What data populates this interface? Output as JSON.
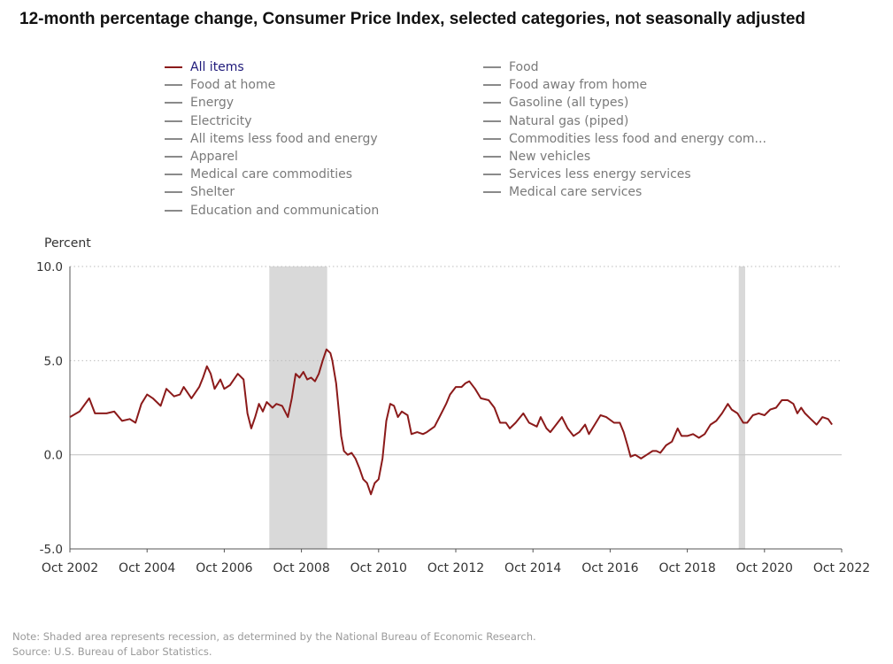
{
  "title": "12-month percentage change, Consumer Price Index, selected categories, not seasonally adjusted",
  "legend": [
    {
      "label": "All items",
      "active": true
    },
    {
      "label": "Food at home",
      "active": false
    },
    {
      "label": "Energy",
      "active": false
    },
    {
      "label": "Electricity",
      "active": false
    },
    {
      "label": "All items less food and energy",
      "active": false
    },
    {
      "label": "Apparel",
      "active": false
    },
    {
      "label": "Medical care commodities",
      "active": false
    },
    {
      "label": "Shelter",
      "active": false
    },
    {
      "label": "Education and communication",
      "active": false
    },
    {
      "label": "Food",
      "active": false
    },
    {
      "label": "Food away from home",
      "active": false
    },
    {
      "label": "Gasoline (all types)",
      "active": false
    },
    {
      "label": "Natural gas (piped)",
      "active": false
    },
    {
      "label": "Commodities less food and energy com...",
      "active": false
    },
    {
      "label": "New vehicles",
      "active": false
    },
    {
      "label": "Services less energy services",
      "active": false
    },
    {
      "label": "Medical care services",
      "active": false
    }
  ],
  "colors": {
    "series": "#8b1a1a",
    "recession": "#d9d9d9",
    "grid": "#bdbdbd",
    "zero_line": "#c8c8c8",
    "axis": "#555555"
  },
  "chart_data": {
    "type": "line",
    "ylabel": "Percent",
    "ylim": [
      -5,
      10
    ],
    "yticks": [
      10,
      5,
      0,
      -5
    ],
    "ytick_labels": [
      "10.0",
      "5.0",
      "0.0",
      "-5.0"
    ],
    "xlim": [
      2002.75,
      2022.75
    ],
    "xticks": [
      2002.75,
      2004.75,
      2006.75,
      2008.75,
      2010.75,
      2012.75,
      2014.75,
      2016.75,
      2018.75,
      2020.75,
      2022.75
    ],
    "xtick_labels": [
      "Oct 2002",
      "Oct 2004",
      "Oct 2006",
      "Oct 2008",
      "Oct 2010",
      "Oct 2012",
      "Oct 2014",
      "Oct 2016",
      "Oct 2018",
      "Oct 2020",
      "Oct 2022"
    ],
    "grid": true,
    "recessions": [
      [
        2007.917,
        2009.417
      ],
      [
        2020.083,
        2020.25
      ]
    ],
    "series": [
      {
        "name": "All items",
        "points": [
          [
            2002.75,
            2.0
          ],
          [
            2003.0,
            2.3
          ],
          [
            2003.25,
            3.0
          ],
          [
            2003.4,
            2.2
          ],
          [
            2003.7,
            2.2
          ],
          [
            2003.9,
            2.3
          ],
          [
            2004.1,
            1.8
          ],
          [
            2004.3,
            1.9
          ],
          [
            2004.45,
            1.7
          ],
          [
            2004.6,
            2.7
          ],
          [
            2004.75,
            3.2
          ],
          [
            2004.9,
            3.0
          ],
          [
            2005.1,
            2.6
          ],
          [
            2005.25,
            3.5
          ],
          [
            2005.45,
            3.1
          ],
          [
            2005.6,
            3.2
          ],
          [
            2005.7,
            3.6
          ],
          [
            2005.9,
            3.0
          ],
          [
            2006.1,
            3.6
          ],
          [
            2006.2,
            4.1
          ],
          [
            2006.3,
            4.7
          ],
          [
            2006.4,
            4.3
          ],
          [
            2006.5,
            3.5
          ],
          [
            2006.65,
            4.0
          ],
          [
            2006.75,
            3.5
          ],
          [
            2006.9,
            3.7
          ],
          [
            2007.0,
            4.0
          ],
          [
            2007.1,
            4.3
          ],
          [
            2007.25,
            4.0
          ],
          [
            2007.35,
            2.2
          ],
          [
            2007.45,
            1.4
          ],
          [
            2007.55,
            2.0
          ],
          [
            2007.65,
            2.7
          ],
          [
            2007.75,
            2.3
          ],
          [
            2007.85,
            2.8
          ],
          [
            2008.0,
            2.5
          ],
          [
            2008.1,
            2.7
          ],
          [
            2008.25,
            2.6
          ],
          [
            2008.4,
            2.0
          ],
          [
            2008.5,
            3.0
          ],
          [
            2008.6,
            4.3
          ],
          [
            2008.7,
            4.1
          ],
          [
            2008.8,
            4.4
          ],
          [
            2008.9,
            4.0
          ],
          [
            2009.0,
            4.1
          ],
          [
            2009.1,
            3.9
          ],
          [
            2009.2,
            4.3
          ],
          [
            2009.3,
            5.0
          ],
          [
            2009.4,
            5.6
          ],
          [
            2009.5,
            5.4
          ],
          [
            2009.55,
            5.0
          ],
          [
            2009.65,
            3.8
          ],
          [
            2009.72,
            2.3
          ],
          [
            2009.78,
            1.0
          ],
          [
            2009.85,
            0.2
          ],
          [
            2009.95,
            0.0
          ],
          [
            2010.05,
            0.1
          ],
          [
            2010.15,
            -0.2
          ],
          [
            2010.25,
            -0.7
          ],
          [
            2010.35,
            -1.3
          ],
          [
            2010.45,
            -1.5
          ],
          [
            2010.55,
            -2.1
          ],
          [
            2010.65,
            -1.5
          ],
          [
            2010.75,
            -1.3
          ],
          [
            2010.85,
            -0.2
          ],
          [
            2010.95,
            1.8
          ],
          [
            2011.05,
            2.7
          ],
          [
            2011.15,
            2.6
          ],
          [
            2011.25,
            2.0
          ],
          [
            2011.35,
            2.3
          ],
          [
            2011.5,
            2.1
          ],
          [
            2011.6,
            1.1
          ],
          [
            2011.75,
            1.2
          ],
          [
            2011.9,
            1.1
          ],
          [
            2012.0,
            1.2
          ],
          [
            2012.2,
            1.5
          ],
          [
            2012.35,
            2.1
          ],
          [
            2012.5,
            2.7
          ],
          [
            2012.6,
            3.2
          ],
          [
            2012.75,
            3.6
          ],
          [
            2012.9,
            3.6
          ],
          [
            2013.0,
            3.8
          ],
          [
            2013.1,
            3.9
          ],
          [
            2013.25,
            3.5
          ],
          [
            2013.4,
            3.0
          ],
          [
            2013.6,
            2.9
          ],
          [
            2013.75,
            2.5
          ],
          [
            2013.9,
            1.7
          ],
          [
            2014.05,
            1.7
          ],
          [
            2014.15,
            1.4
          ],
          [
            2014.3,
            1.7
          ],
          [
            2014.5,
            2.2
          ],
          [
            2014.65,
            1.7
          ],
          [
            2014.85,
            1.5
          ],
          [
            2014.95,
            2.0
          ],
          [
            2015.1,
            1.4
          ],
          [
            2015.2,
            1.2
          ],
          [
            2015.35,
            1.6
          ],
          [
            2015.5,
            2.0
          ],
          [
            2015.65,
            1.4
          ],
          [
            2015.8,
            1.0
          ],
          [
            2015.95,
            1.2
          ],
          [
            2016.1,
            1.6
          ],
          [
            2016.2,
            1.1
          ],
          [
            2016.35,
            1.6
          ],
          [
            2016.5,
            2.1
          ],
          [
            2016.65,
            2.0
          ],
          [
            2016.85,
            1.7
          ],
          [
            2017.0,
            1.7
          ],
          [
            2017.1,
            1.2
          ],
          [
            2017.2,
            0.5
          ],
          [
            2017.28,
            -0.1
          ],
          [
            2017.4,
            0.0
          ],
          [
            2017.55,
            -0.2
          ],
          [
            2017.7,
            0.0
          ],
          [
            2017.85,
            0.2
          ],
          [
            2017.95,
            0.2
          ],
          [
            2018.05,
            0.1
          ],
          [
            2018.2,
            0.5
          ],
          [
            2018.35,
            0.7
          ],
          [
            2018.5,
            1.4
          ],
          [
            2018.6,
            1.0
          ],
          [
            2018.75,
            1.0
          ],
          [
            2018.9,
            1.1
          ],
          [
            2019.05,
            0.9
          ],
          [
            2019.2,
            1.1
          ],
          [
            2019.35,
            1.6
          ],
          [
            2019.5,
            1.8
          ],
          [
            2019.65,
            2.2
          ],
          [
            2019.8,
            2.7
          ],
          [
            2019.9,
            2.4
          ],
          [
            2020.05,
            2.2
          ],
          [
            2020.2,
            1.7
          ],
          [
            2020.3,
            1.7
          ],
          [
            2020.45,
            2.1
          ],
          [
            2020.6,
            2.2
          ],
          [
            2020.75,
            2.1
          ],
          [
            2020.9,
            2.4
          ],
          [
            2021.05,
            2.5
          ],
          [
            2021.2,
            2.9
          ],
          [
            2021.35,
            2.9
          ],
          [
            2021.5,
            2.7
          ],
          [
            2021.6,
            2.2
          ],
          [
            2021.7,
            2.5
          ],
          [
            2021.8,
            2.2
          ],
          [
            2021.95,
            1.9
          ],
          [
            2022.1,
            1.6
          ],
          [
            2022.25,
            2.0
          ],
          [
            2022.4,
            1.9
          ],
          [
            2022.5,
            1.6
          ]
        ]
      }
    ]
  },
  "notes": {
    "line1": "Note: Shaded area represents recession, as determined by the National Bureau of Economic Research.",
    "line2": "Source: U.S. Bureau of Labor Statistics."
  }
}
